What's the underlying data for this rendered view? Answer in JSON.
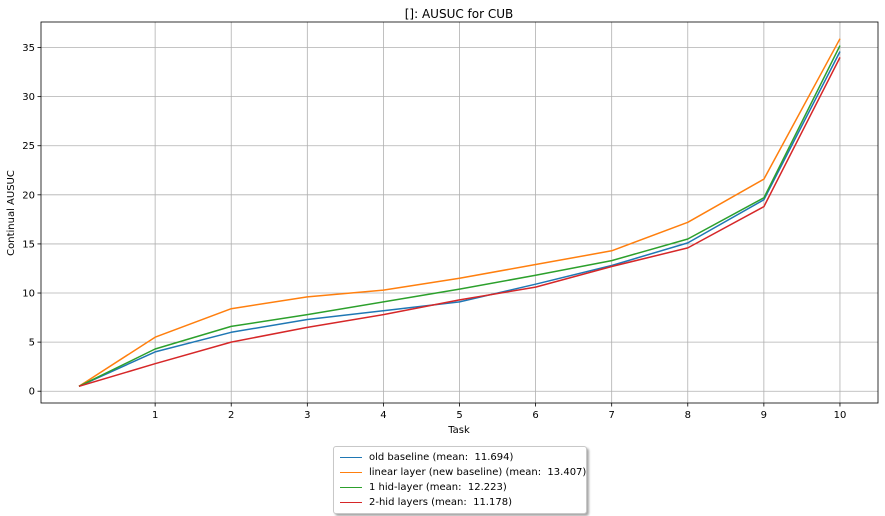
{
  "chart_data": {
    "type": "line",
    "title": "[]: AUSUC for CUB",
    "xlabel": "Task",
    "ylabel": "Continual AUSUC",
    "x": [
      0,
      1,
      2,
      3,
      4,
      5,
      6,
      7,
      8,
      9,
      10
    ],
    "xticks": [
      "1",
      "2",
      "3",
      "4",
      "5",
      "6",
      "7",
      "8",
      "9",
      "10"
    ],
    "yticks": [
      "0",
      "5",
      "10",
      "15",
      "20",
      "25",
      "30",
      "35"
    ],
    "xlim": [
      -0.5,
      10.5
    ],
    "ylim": [
      -1.2,
      37.6
    ],
    "grid": true,
    "legend_position": "below",
    "series": [
      {
        "name": "old baseline (mean:  11.694)",
        "color": "#1f77b4",
        "values": [
          0.5,
          4.0,
          6.0,
          7.3,
          8.2,
          9.1,
          10.9,
          12.8,
          15.1,
          19.5,
          34.6
        ]
      },
      {
        "name": "linear layer (new baseline) (mean:  13.407)",
        "color": "#ff7f0e",
        "values": [
          0.5,
          5.5,
          8.4,
          9.6,
          10.3,
          11.5,
          12.9,
          14.3,
          17.2,
          21.6,
          35.9
        ]
      },
      {
        "name": "1 hid-layer (mean:  12.223)",
        "color": "#2ca02c",
        "values": [
          0.5,
          4.3,
          6.6,
          7.8,
          9.1,
          10.4,
          11.8,
          13.3,
          15.5,
          19.7,
          35.2
        ]
      },
      {
        "name": "2-hid layers (mean:  11.178)",
        "color": "#d62728",
        "values": [
          0.5,
          2.8,
          5.0,
          6.5,
          7.8,
          9.3,
          10.6,
          12.7,
          14.6,
          18.8,
          34.0
        ]
      }
    ]
  }
}
